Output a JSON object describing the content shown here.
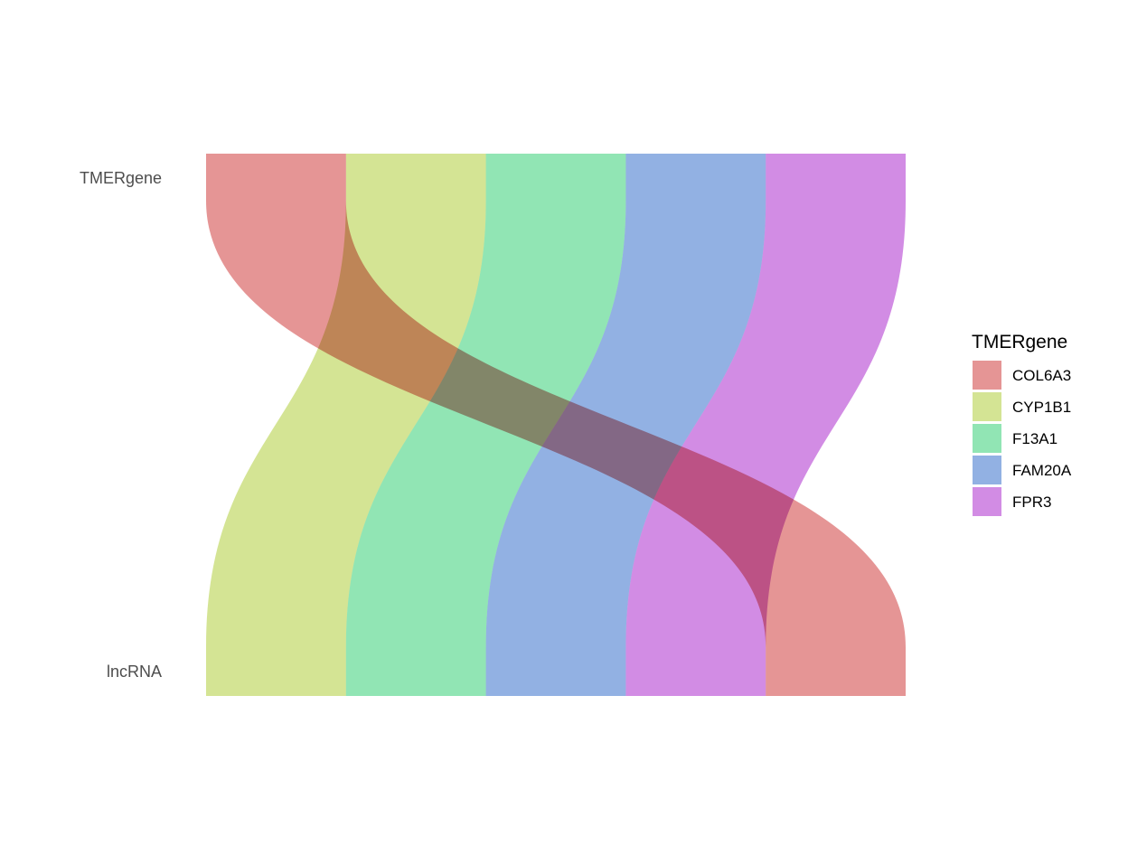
{
  "chart_data": {
    "type": "alluvial",
    "axes": [
      "TMERgene",
      "lncRNA"
    ],
    "legend": {
      "title": "TMERgene",
      "position": "right"
    },
    "flows": [
      {
        "TMERgene": "COL6A3",
        "lncRNA": "COL6A3",
        "value": 1
      },
      {
        "TMERgene": "CYP1B1",
        "lncRNA": "CYP1B1",
        "value": 1
      },
      {
        "TMERgene": "F13A1",
        "lncRNA": "F13A1",
        "value": 1
      },
      {
        "TMERgene": "FAM20A",
        "lncRNA": "FAM20A",
        "value": 1
      },
      {
        "TMERgene": "FPR3",
        "lncRNA": "FPR3",
        "value": 1
      }
    ],
    "top_order": [
      "COL6A3",
      "CYP1B1",
      "F13A1",
      "FAM20A",
      "FPR3"
    ],
    "bottom_order": [
      "CYP1B1",
      "F13A1",
      "FAM20A",
      "FPR3",
      "COL6A3"
    ],
    "series": [
      {
        "name": "COL6A3",
        "color": "#e28a89"
      },
      {
        "name": "CYP1B1",
        "color": "#cfe188"
      },
      {
        "name": "F13A1",
        "color": "#85e2ac"
      },
      {
        "name": "FAM20A",
        "color": "#86a9e0"
      },
      {
        "name": "FPR3",
        "color": "#cd7fe1"
      }
    ],
    "grid": false
  }
}
